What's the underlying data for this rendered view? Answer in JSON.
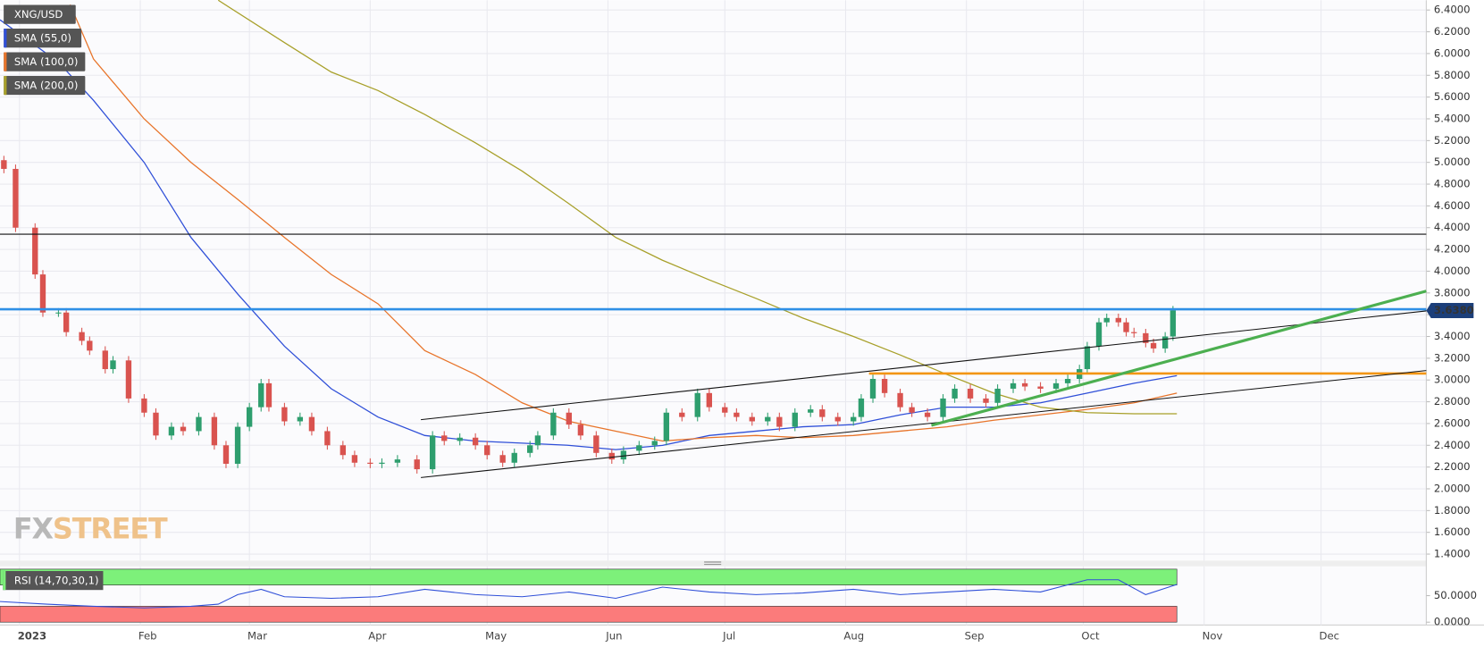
{
  "chart_data": {
    "type": "candlestick",
    "title": "XNG/USD",
    "x": [
      -4,
      -1,
      4,
      6,
      10,
      12,
      16,
      18,
      22,
      24,
      28,
      32,
      35,
      39,
      42,
      46,
      50,
      53,
      56,
      59,
      62,
      64,
      68,
      72,
      75,
      79,
      83,
      86,
      90,
      93,
      97,
      102,
      106,
      109,
      113,
      117,
      120,
      124,
      127,
      131,
      133,
      137,
      141,
      144,
      148,
      152,
      155,
      159,
      163,
      166,
      170,
      174,
      177,
      181,
      184,
      188,
      192,
      195,
      199,
      203,
      206,
      210,
      214,
      216,
      219,
      222,
      226,
      229,
      233,
      237,
      240,
      244,
      248,
      251,
      255,
      258,
      262,
      266,
      269,
      272,
      274,
      277,
      279,
      282,
      284,
      286,
      289,
      291,
      294,
      296
    ],
    "open": [
      5.02,
      4.94,
      4.4,
      3.97,
      3.62,
      3.62,
      3.44,
      3.36,
      3.27,
      3.1,
      3.18,
      2.83,
      2.7,
      2.49,
      2.57,
      2.53,
      2.66,
      2.4,
      2.23,
      2.57,
      2.75,
      2.97,
      2.75,
      2.62,
      2.66,
      2.53,
      2.4,
      2.31,
      2.24,
      2.23,
      2.24,
      2.27,
      2.18,
      2.49,
      2.44,
      2.47,
      2.4,
      2.31,
      2.24,
      2.33,
      2.4,
      2.49,
      2.7,
      2.59,
      2.49,
      2.33,
      2.27,
      2.35,
      2.4,
      2.44,
      2.7,
      2.66,
      2.88,
      2.75,
      2.7,
      2.66,
      2.62,
      2.66,
      2.57,
      2.7,
      2.73,
      2.66,
      2.62,
      2.66,
      2.83,
      3.01,
      2.88,
      2.75,
      2.7,
      2.66,
      2.83,
      2.92,
      2.83,
      2.79,
      2.92,
      2.97,
      2.94,
      2.92,
      2.97,
      3.01,
      3.1,
      3.31,
      3.53,
      3.57,
      3.53,
      3.44,
      3.43,
      3.34,
      3.29,
      3.4
    ],
    "high": [
      5.06,
      4.98,
      4.44,
      4.01,
      3.66,
      3.66,
      3.48,
      3.4,
      3.31,
      3.22,
      3.22,
      2.87,
      2.74,
      2.61,
      2.61,
      2.7,
      2.7,
      2.44,
      2.61,
      2.79,
      3.01,
      3.01,
      2.79,
      2.7,
      2.7,
      2.57,
      2.44,
      2.35,
      2.28,
      2.28,
      2.31,
      2.31,
      2.53,
      2.53,
      2.51,
      2.51,
      2.44,
      2.35,
      2.37,
      2.44,
      2.53,
      2.74,
      2.74,
      2.63,
      2.53,
      2.37,
      2.39,
      2.44,
      2.48,
      2.74,
      2.74,
      2.92,
      2.92,
      2.79,
      2.74,
      2.7,
      2.7,
      2.7,
      2.74,
      2.77,
      2.77,
      2.7,
      2.7,
      2.87,
      3.05,
      3.05,
      2.92,
      2.79,
      2.74,
      2.87,
      2.96,
      2.96,
      2.87,
      2.96,
      3.01,
      3.01,
      2.98,
      3.01,
      3.05,
      3.14,
      3.35,
      3.57,
      3.61,
      3.61,
      3.57,
      3.48,
      3.47,
      3.38,
      3.44,
      3.68
    ],
    "low": [
      4.9,
      4.36,
      3.93,
      3.58,
      3.58,
      3.4,
      3.32,
      3.23,
      3.06,
      3.06,
      2.79,
      2.66,
      2.45,
      2.45,
      2.49,
      2.49,
      2.36,
      2.19,
      2.19,
      2.53,
      2.71,
      2.71,
      2.58,
      2.58,
      2.49,
      2.36,
      2.27,
      2.2,
      2.19,
      2.19,
      2.2,
      2.14,
      2.14,
      2.4,
      2.4,
      2.36,
      2.27,
      2.2,
      2.2,
      2.29,
      2.36,
      2.45,
      2.55,
      2.45,
      2.29,
      2.23,
      2.23,
      2.31,
      2.36,
      2.4,
      2.62,
      2.62,
      2.71,
      2.66,
      2.62,
      2.58,
      2.58,
      2.53,
      2.53,
      2.66,
      2.62,
      2.58,
      2.58,
      2.62,
      2.79,
      2.84,
      2.71,
      2.66,
      2.62,
      2.62,
      2.79,
      2.79,
      2.75,
      2.75,
      2.88,
      2.9,
      2.88,
      2.88,
      2.93,
      2.97,
      3.06,
      3.27,
      3.49,
      3.49,
      3.4,
      3.39,
      3.3,
      3.25,
      3.25,
      3.36
    ],
    "close": [
      4.94,
      4.4,
      3.97,
      3.62,
      3.62,
      3.44,
      3.36,
      3.27,
      3.1,
      3.18,
      2.83,
      2.7,
      2.49,
      2.57,
      2.53,
      2.66,
      2.4,
      2.23,
      2.57,
      2.75,
      2.97,
      2.75,
      2.62,
      2.66,
      2.53,
      2.4,
      2.31,
      2.24,
      2.23,
      2.24,
      2.27,
      2.18,
      2.49,
      2.44,
      2.47,
      2.4,
      2.31,
      2.24,
      2.33,
      2.4,
      2.49,
      2.7,
      2.59,
      2.49,
      2.33,
      2.27,
      2.35,
      2.4,
      2.44,
      2.7,
      2.66,
      2.88,
      2.75,
      2.7,
      2.66,
      2.62,
      2.66,
      2.57,
      2.7,
      2.73,
      2.66,
      2.62,
      2.66,
      2.83,
      3.01,
      2.88,
      2.75,
      2.7,
      2.66,
      2.83,
      2.92,
      2.83,
      2.79,
      2.92,
      2.97,
      2.94,
      2.92,
      2.97,
      3.01,
      3.1,
      3.31,
      3.53,
      3.57,
      3.53,
      3.44,
      3.43,
      3.34,
      3.29,
      3.4,
      3.64
    ],
    "up_color": "#2e9e6e",
    "down_color": "#d9534f",
    "xlim": [
      -5,
      361
    ],
    "xticks": [
      {
        "value": 0,
        "label": "2023"
      },
      {
        "value": 31,
        "label": "Feb"
      },
      {
        "value": 59,
        "label": "Mar"
      },
      {
        "value": 90,
        "label": "Apr"
      },
      {
        "value": 120,
        "label": "May"
      },
      {
        "value": 151,
        "label": "Jun"
      },
      {
        "value": 181,
        "label": "Jul"
      },
      {
        "value": 212,
        "label": "Aug"
      },
      {
        "value": 243,
        "label": "Sep"
      },
      {
        "value": 273,
        "label": "Oct"
      },
      {
        "value": 304,
        "label": "Nov"
      },
      {
        "value": 334,
        "label": "Dec"
      }
    ],
    "ylim": [
      1.34,
      6.49
    ],
    "yticks": [
      {
        "value": 1.4,
        "label": "1.4000"
      },
      {
        "value": 1.6,
        "label": "1.6000"
      },
      {
        "value": 1.8,
        "label": "1.8000"
      },
      {
        "value": 2.0,
        "label": "2.0000"
      },
      {
        "value": 2.2,
        "label": "2.2000"
      },
      {
        "value": 2.4,
        "label": "2.4000"
      },
      {
        "value": 2.6,
        "label": "2.6000"
      },
      {
        "value": 2.8,
        "label": "2.8000"
      },
      {
        "value": 3.0,
        "label": "3.0000"
      },
      {
        "value": 3.2,
        "label": "3.2000"
      },
      {
        "value": 3.4,
        "label": "3.4000"
      },
      {
        "value": 3.6,
        "label": "3.6000"
      },
      {
        "value": 3.8,
        "label": "3.8000"
      },
      {
        "value": 4.0,
        "label": "4.0000"
      },
      {
        "value": 4.2,
        "label": "4.2000"
      },
      {
        "value": 4.4,
        "label": "4.4000"
      },
      {
        "value": 4.6,
        "label": "4.6000"
      },
      {
        "value": 4.8,
        "label": "4.8000"
      },
      {
        "value": 5.0,
        "label": "5.0000"
      },
      {
        "value": 5.2,
        "label": "5.2000"
      },
      {
        "value": 5.4,
        "label": "5.4000"
      },
      {
        "value": 5.6,
        "label": "5.6000"
      },
      {
        "value": 5.8,
        "label": "5.8000"
      },
      {
        "value": 6.0,
        "label": "6.0000"
      },
      {
        "value": 6.2,
        "label": "6.2000"
      },
      {
        "value": 6.4,
        "label": "6.4000"
      }
    ],
    "grid": true,
    "last_price": {
      "value": 3.638,
      "label": "3.6380"
    },
    "last_price_color": "#1c3f7a",
    "series": [
      {
        "name": "SMA (55,0)",
        "color": "#2f4fd8",
        "x": [
          -5,
          10,
          19,
          32,
          44,
          56,
          68,
          80,
          92,
          104,
          117,
          129,
          141,
          153,
          165,
          177,
          189,
          201,
          214,
          226,
          238,
          250,
          262,
          274,
          286,
          297
        ],
        "values": [
          6.31,
          5.92,
          5.57,
          5.0,
          4.31,
          3.79,
          3.31,
          2.92,
          2.66,
          2.49,
          2.44,
          2.42,
          2.4,
          2.36,
          2.4,
          2.49,
          2.53,
          2.57,
          2.59,
          2.68,
          2.75,
          2.75,
          2.79,
          2.88,
          2.97,
          3.04
        ]
      },
      {
        "name": "SMA (100,0)",
        "color": "#e8742a",
        "x": [
          13,
          19,
          32,
          44,
          56,
          68,
          80,
          92,
          104,
          117,
          129,
          141,
          153,
          165,
          177,
          189,
          201,
          214,
          226,
          238,
          250,
          262,
          274,
          286,
          297
        ],
        "values": [
          6.45,
          5.95,
          5.4,
          5.0,
          4.66,
          4.31,
          3.97,
          3.7,
          3.27,
          3.05,
          2.79,
          2.62,
          2.53,
          2.44,
          2.47,
          2.49,
          2.47,
          2.49,
          2.53,
          2.57,
          2.63,
          2.68,
          2.73,
          2.79,
          2.88
        ]
      },
      {
        "name": "SMA (200,0)",
        "color": "#a8a02a",
        "x": [
          51,
          68,
          80,
          92,
          104,
          117,
          129,
          141,
          153,
          165,
          177,
          189,
          201,
          214,
          226,
          238,
          250,
          262,
          274,
          286,
          297
        ],
        "values": [
          6.49,
          6.1,
          5.83,
          5.66,
          5.44,
          5.18,
          4.92,
          4.62,
          4.31,
          4.1,
          3.92,
          3.75,
          3.57,
          3.4,
          3.23,
          3.05,
          2.88,
          2.75,
          2.7,
          2.69,
          2.69
        ]
      }
    ],
    "levels": [
      {
        "value": 4.34,
        "color": "#111111",
        "width": 1
      },
      {
        "value": 3.65,
        "color": "#2e8fe6",
        "width": 2.5
      },
      {
        "value": 3.06,
        "color": "#f39512",
        "width": 2.5,
        "from": 218
      }
    ],
    "trendlines": [
      {
        "x": [
          103,
          361
        ],
        "values": [
          2.635,
          3.635
        ],
        "color": "#111111",
        "width": 1
      },
      {
        "x": [
          103,
          361
        ],
        "values": [
          2.104,
          3.087
        ],
        "color": "#111111",
        "width": 1
      },
      {
        "x": [
          234,
          361
        ],
        "values": [
          2.583,
          3.817
        ],
        "color": "#4caf50",
        "width": 3
      }
    ],
    "watermark": [
      "FX",
      "STREET"
    ],
    "rsi": {
      "name": "RSI (14,70,30,1)",
      "color": "#2f4fd8",
      "x": [
        -5,
        7,
        19,
        32,
        44,
        51,
        56,
        62,
        68,
        80,
        92,
        104,
        117,
        129,
        141,
        153,
        165,
        177,
        189,
        201,
        214,
        226,
        238,
        250,
        262,
        274,
        282,
        289,
        297
      ],
      "values": [
        39,
        34,
        30,
        27,
        30,
        34,
        52,
        62,
        48,
        45,
        48,
        62,
        52,
        48,
        57,
        45,
        66,
        57,
        52,
        55,
        62,
        52,
        57,
        62,
        57,
        80,
        80,
        52,
        71
      ],
      "ylim": [
        0,
        100
      ],
      "yticks": [
        {
          "value": 0,
          "label": "0.0000"
        },
        {
          "value": 50,
          "label": "50.0000"
        }
      ],
      "overbought": 70,
      "oversold": 30,
      "overbought_color": "#7df07a",
      "oversold_color": "#fb7b7b"
    }
  }
}
